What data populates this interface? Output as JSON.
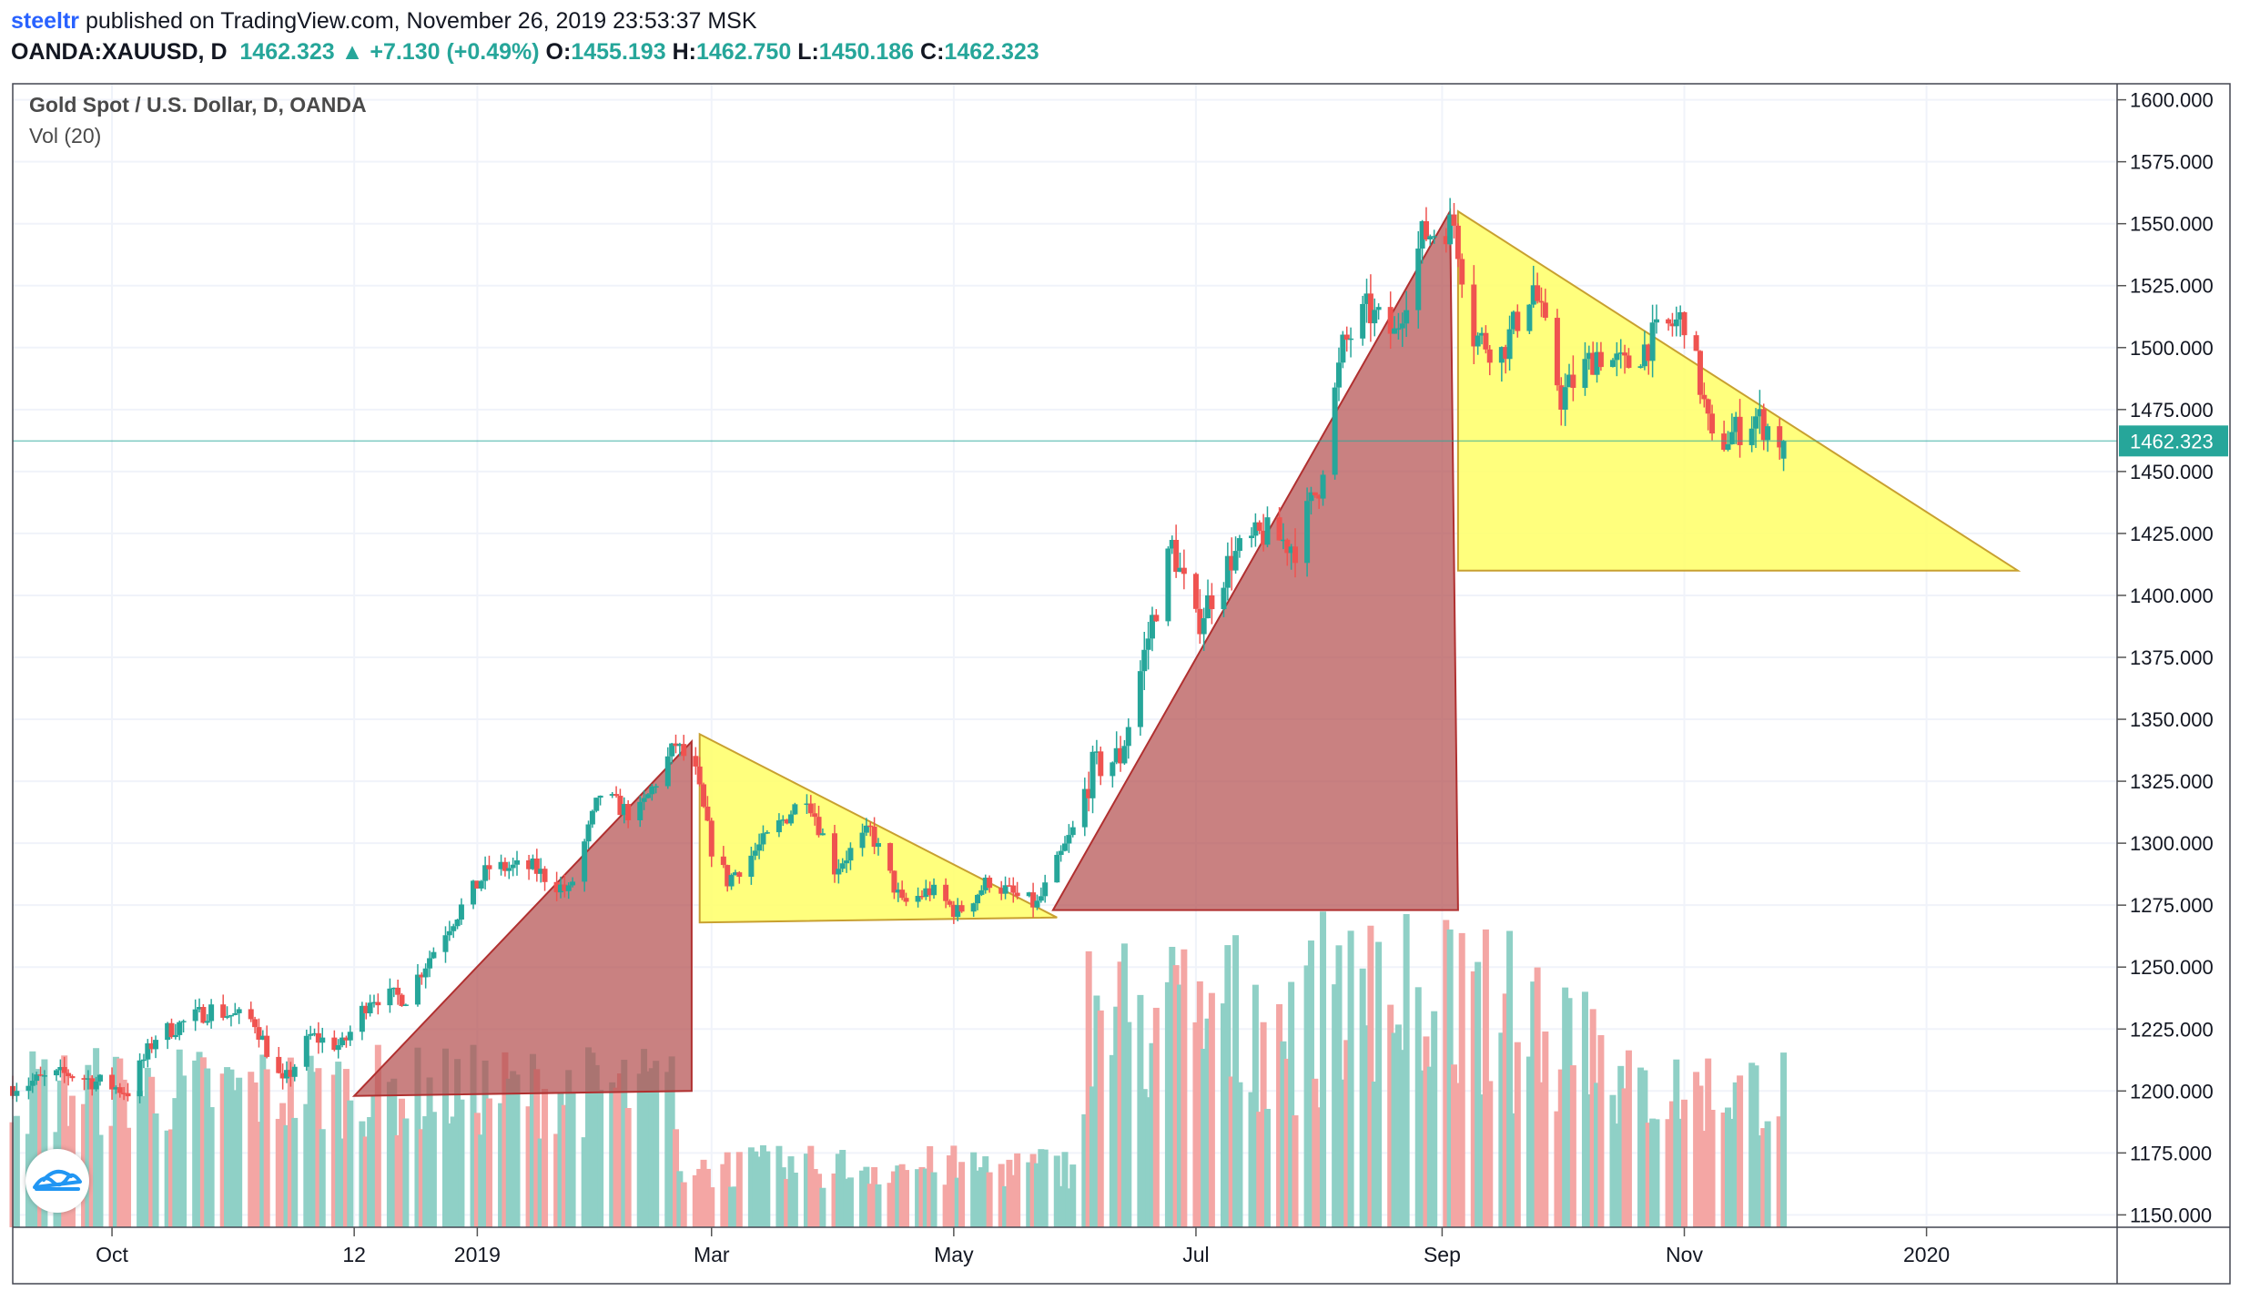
{
  "header": {
    "user": "steeltr",
    "published_text": "published on TradingView.com, November 26, 2019 23:53:37 MSK",
    "symbol": "OANDA:XAUUSD, D",
    "last": "1462.323",
    "arrow": "▲",
    "change": "+7.130 (+0.49%)",
    "o_label": "O:",
    "o_value": "1455.193",
    "h_label": "H:",
    "h_value": "1462.750",
    "l_label": "L:",
    "l_value": "1450.186",
    "c_label": "C:",
    "c_value": "1462.323"
  },
  "legend": {
    "title": "Gold Spot / U.S. Dollar, D, OANDA",
    "volume": "Vol (20)"
  },
  "colors": {
    "up": "#26a69a",
    "down": "#ef5350",
    "vol_up": "#8fd0c6",
    "vol_down": "#f4a6a4",
    "red_triangle": "#b45050",
    "yellow_triangle": "#ffff66",
    "price_line": "#26a69a"
  },
  "chart_data": {
    "type": "candlestick",
    "symbol": "XAUUSD",
    "timeframe": "D",
    "ylim": [
      1145,
      1605
    ],
    "y_ticks": [
      "1600.000",
      "1575.000",
      "1550.000",
      "1525.000",
      "1500.000",
      "1475.000",
      "1450.000",
      "1425.000",
      "1400.000",
      "1375.000",
      "1350.000",
      "1325.000",
      "1300.000",
      "1275.000",
      "1250.000",
      "1225.000",
      "1200.000",
      "1175.000",
      "1150.000"
    ],
    "x_ticks": [
      "Oct",
      "12",
      "2019",
      "Mar",
      "May",
      "Jul",
      "Sep",
      "Nov",
      "2020"
    ],
    "x_tick_dates": [
      "2018-10-01",
      "2018-12-01",
      "2019-01-01",
      "2019-03-01",
      "2019-05-01",
      "2019-07-01",
      "2019-09-01",
      "2019-11-01",
      "2020-01-01"
    ],
    "date_range": [
      "2018-09-06",
      "2020-02-18"
    ],
    "last_price": 1462.323,
    "last_price_label": "1462.323",
    "price_path": [
      [
        "2018-09-06",
        1202
      ],
      [
        "2018-09-20",
        1207
      ],
      [
        "2018-10-05",
        1200
      ],
      [
        "2018-10-12",
        1222
      ],
      [
        "2018-10-26",
        1233
      ],
      [
        "2018-11-06",
        1228
      ],
      [
        "2018-11-13",
        1202
      ],
      [
        "2018-11-20",
        1222
      ],
      [
        "2018-11-28",
        1218
      ],
      [
        "2018-12-05",
        1238
      ],
      [
        "2018-12-14",
        1238
      ],
      [
        "2018-12-24",
        1265
      ],
      [
        "2019-01-04",
        1290
      ],
      [
        "2019-01-15",
        1290
      ],
      [
        "2019-01-24",
        1280
      ],
      [
        "2019-02-01",
        1320
      ],
      [
        "2019-02-10",
        1310
      ],
      [
        "2019-02-20",
        1340
      ],
      [
        "2019-02-25",
        1328
      ],
      [
        "2019-03-01",
        1298
      ],
      [
        "2019-03-05",
        1285
      ],
      [
        "2019-03-15",
        1302
      ],
      [
        "2019-03-25",
        1320
      ],
      [
        "2019-04-01",
        1290
      ],
      [
        "2019-04-10",
        1305
      ],
      [
        "2019-04-18",
        1275
      ],
      [
        "2019-04-25",
        1281
      ],
      [
        "2019-05-02",
        1272
      ],
      [
        "2019-05-10",
        1285
      ],
      [
        "2019-05-17",
        1278
      ],
      [
        "2019-05-22",
        1275
      ],
      [
        "2019-05-31",
        1305
      ],
      [
        "2019-06-05",
        1330
      ],
      [
        "2019-06-12",
        1335
      ],
      [
        "2019-06-20",
        1390
      ],
      [
        "2019-06-25",
        1420
      ],
      [
        "2019-07-01",
        1388
      ],
      [
        "2019-07-10",
        1415
      ],
      [
        "2019-07-18",
        1425
      ],
      [
        "2019-07-26",
        1420
      ],
      [
        "2019-08-01",
        1445
      ],
      [
        "2019-08-07",
        1500
      ],
      [
        "2019-08-13",
        1515
      ],
      [
        "2019-08-20",
        1505
      ],
      [
        "2019-08-27",
        1545
      ],
      [
        "2019-09-04",
        1550
      ],
      [
        "2019-09-09",
        1505
      ],
      [
        "2019-09-16",
        1498
      ],
      [
        "2019-09-24",
        1525
      ],
      [
        "2019-10-01",
        1480
      ],
      [
        "2019-10-10",
        1498
      ],
      [
        "2019-10-17",
        1492
      ],
      [
        "2019-10-25",
        1505
      ],
      [
        "2019-11-01",
        1512
      ],
      [
        "2019-11-05",
        1485
      ],
      [
        "2019-11-08",
        1460
      ],
      [
        "2019-11-13",
        1465
      ],
      [
        "2019-11-19",
        1472
      ],
      [
        "2019-11-26",
        1462
      ]
    ],
    "volume_ylim": [
      0,
      1
    ],
    "drawings": [
      {
        "type": "triangle",
        "color": "red",
        "points": [
          [
            "2018-12-01",
            1198
          ],
          [
            "2019-02-24",
            1341
          ],
          [
            "2019-02-24",
            1200
          ]
        ]
      },
      {
        "type": "triangle",
        "color": "yellow",
        "points": [
          [
            "2019-02-26",
            1344
          ],
          [
            "2019-02-26",
            1268
          ],
          [
            "2019-05-27",
            1270
          ]
        ]
      },
      {
        "type": "triangle",
        "color": "red",
        "points": [
          [
            "2019-05-26",
            1273
          ],
          [
            "2019-09-03",
            1555
          ],
          [
            "2019-09-05",
            1273
          ]
        ]
      },
      {
        "type": "triangle",
        "color": "yellow",
        "points": [
          [
            "2019-09-05",
            1555
          ],
          [
            "2019-09-05",
            1410
          ],
          [
            "2020-01-24",
            1410
          ]
        ]
      }
    ]
  }
}
